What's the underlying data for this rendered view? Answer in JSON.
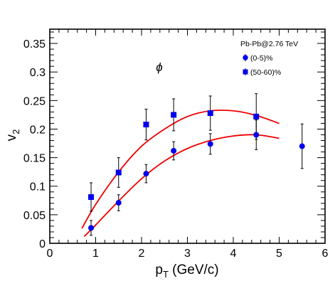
{
  "chart_data": {
    "type": "scatter",
    "title": "",
    "xlabel": "p",
    "xlabel_sub": "T",
    "xlabel_unit": " (GeV/c)",
    "ylabel": "v",
    "ylabel_sub": "2",
    "annotation": "ϕ",
    "xlim": [
      0,
      6
    ],
    "ylim": [
      0,
      0.375
    ],
    "x_ticks": [
      0,
      1,
      2,
      3,
      4,
      5,
      6
    ],
    "y_ticks": [
      0,
      0.05,
      0.1,
      0.15,
      0.2,
      0.25,
      0.3,
      0.35
    ],
    "x_tick_labels": [
      "0",
      "1",
      "2",
      "3",
      "4",
      "5",
      "6"
    ],
    "y_tick_labels": [
      "0",
      "0.05",
      "0.1",
      "0.15",
      "0.2",
      "0.25",
      "0.3",
      "0.35"
    ],
    "grid": false,
    "legend_title": "Pb-Pb@2.76 TeV",
    "legend_position": "top-right",
    "series": [
      {
        "name": "(0-5)%",
        "marker": "circle",
        "color": "#0000ee",
        "points": [
          {
            "x": 0.9,
            "y": 0.027,
            "err": 0.013
          },
          {
            "x": 1.5,
            "y": 0.071,
            "err": 0.014
          },
          {
            "x": 2.1,
            "y": 0.122,
            "err": 0.016
          },
          {
            "x": 2.7,
            "y": 0.162,
            "err": 0.016
          },
          {
            "x": 3.5,
            "y": 0.174,
            "err": 0.018
          },
          {
            "x": 4.5,
            "y": 0.19,
            "err": 0.026
          },
          {
            "x": 5.5,
            "y": 0.17,
            "err": 0.039
          }
        ]
      },
      {
        "name": "(50-60)%",
        "marker": "square",
        "color": "#0000ee",
        "points": [
          {
            "x": 0.9,
            "y": 0.081,
            "err": 0.025
          },
          {
            "x": 1.5,
            "y": 0.124,
            "err": 0.026
          },
          {
            "x": 2.1,
            "y": 0.208,
            "err": 0.027
          },
          {
            "x": 2.7,
            "y": 0.225,
            "err": 0.028
          },
          {
            "x": 3.5,
            "y": 0.228,
            "err": 0.03
          },
          {
            "x": 4.5,
            "y": 0.222,
            "err": 0.04
          }
        ]
      }
    ],
    "fit_curves": [
      {
        "color": "#ee0000",
        "points": [
          [
            0.75,
            0.012
          ],
          [
            1.0,
            0.032
          ],
          [
            1.5,
            0.074
          ],
          [
            2.0,
            0.113
          ],
          [
            2.5,
            0.144
          ],
          [
            3.0,
            0.166
          ],
          [
            3.5,
            0.18
          ],
          [
            4.0,
            0.188
          ],
          [
            4.5,
            0.19
          ],
          [
            5.0,
            0.184
          ]
        ]
      },
      {
        "color": "#ee0000",
        "points": [
          [
            0.7,
            0.026
          ],
          [
            1.0,
            0.068
          ],
          [
            1.5,
            0.125
          ],
          [
            2.0,
            0.17
          ],
          [
            2.5,
            0.2
          ],
          [
            3.0,
            0.222
          ],
          [
            3.5,
            0.232
          ],
          [
            4.0,
            0.232
          ],
          [
            4.5,
            0.224
          ],
          [
            5.0,
            0.21
          ]
        ]
      }
    ]
  }
}
